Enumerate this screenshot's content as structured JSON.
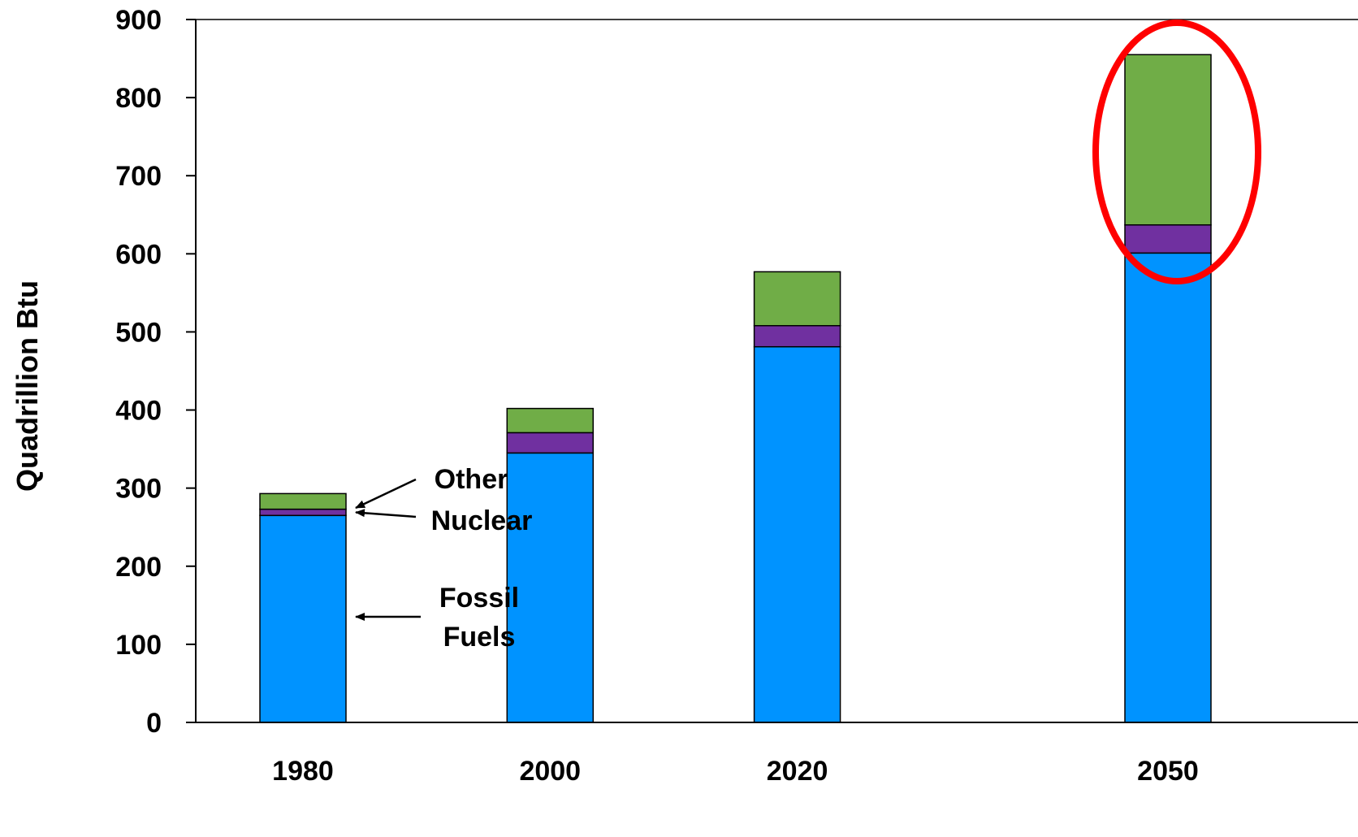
{
  "chart_data": {
    "type": "bar",
    "stacked": true,
    "ylabel": "Quadrillion Btu",
    "ylim": [
      0,
      900
    ],
    "yticks": [
      "0",
      "100",
      "200",
      "300",
      "400",
      "500",
      "600",
      "700",
      "800",
      "900"
    ],
    "categories": [
      "1980",
      "2000",
      "2020",
      "2050"
    ],
    "x_positions": [
      1980,
      2000,
      2020,
      2050
    ],
    "series": [
      {
        "name": "Fossil Fuels",
        "color": "#0093FF",
        "values": [
          265,
          345,
          481,
          601
        ]
      },
      {
        "name": "Nuclear",
        "color": "#7030A0",
        "values": [
          8,
          26,
          27,
          36
        ]
      },
      {
        "name": "Other",
        "color": "#70AD47",
        "values": [
          20,
          31,
          69,
          218
        ]
      }
    ],
    "annotations": [
      {
        "text_lines": [
          "Other"
        ],
        "points_to": "Other",
        "category": "1980"
      },
      {
        "text_lines": [
          "Nuclear"
        ],
        "points_to": "Nuclear",
        "category": "1980"
      },
      {
        "text_lines": [
          "Fossil",
          "Fuels"
        ],
        "points_to": "Fossil Fuels",
        "category": "1980"
      }
    ],
    "highlight": {
      "category": "2050",
      "shape": "ellipse",
      "color": "#FF0000"
    },
    "grid": false
  }
}
